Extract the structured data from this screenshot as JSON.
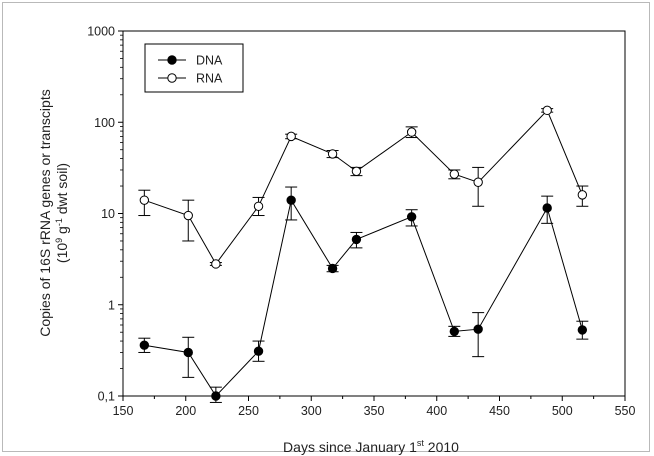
{
  "chart_data": {
    "type": "line",
    "x_axis": {
      "label_prefix": "Days since January 1",
      "label_sup": "st",
      "label_suffix": " 2010",
      "range": [
        150,
        550
      ],
      "ticks": [
        150,
        200,
        250,
        300,
        350,
        400,
        450,
        500,
        550
      ]
    },
    "y_axis": {
      "label_line1": "Copies of 16S rRNA genes or transcipts",
      "label_line2_prefix": "(10",
      "label_line2_sup1": "9",
      "label_line2_mid": " g",
      "label_line2_sup2": "-1",
      "label_line2_suffix": " dwt soil)",
      "scale": "log",
      "range": [
        0.1,
        1000
      ],
      "ticks": [
        0.1,
        1,
        10,
        100,
        1000
      ],
      "tick_labels": [
        "0,1",
        "1",
        "10",
        "100",
        "1000"
      ]
    },
    "grid": false,
    "legend": {
      "position": "top-left"
    },
    "series": [
      {
        "name": "DNA",
        "marker": "filled-circle",
        "color": "#000000",
        "points": [
          {
            "x": 167,
            "y": 0.36,
            "lo": 0.3,
            "hi": 0.43
          },
          {
            "x": 202,
            "y": 0.3,
            "lo": 0.16,
            "hi": 0.44
          },
          {
            "x": 224,
            "y": 0.1,
            "lo": 0.085,
            "hi": 0.125
          },
          {
            "x": 258,
            "y": 0.31,
            "lo": 0.24,
            "hi": 0.4
          },
          {
            "x": 284,
            "y": 14,
            "lo": 8.5,
            "hi": 19.5
          },
          {
            "x": 317,
            "y": 2.5,
            "lo": 2.3,
            "hi": 2.7
          },
          {
            "x": 336,
            "y": 5.2,
            "lo": 4.2,
            "hi": 6.2
          },
          {
            "x": 380,
            "y": 9.2,
            "lo": 7.3,
            "hi": 11
          },
          {
            "x": 414,
            "y": 0.51,
            "lo": 0.45,
            "hi": 0.58
          },
          {
            "x": 433,
            "y": 0.54,
            "lo": 0.27,
            "hi": 0.82
          },
          {
            "x": 488,
            "y": 11.5,
            "lo": 7.8,
            "hi": 15.5
          },
          {
            "x": 516,
            "y": 0.53,
            "lo": 0.42,
            "hi": 0.66
          }
        ]
      },
      {
        "name": "RNA",
        "marker": "open-circle",
        "color": "#000000",
        "points": [
          {
            "x": 167,
            "y": 14,
            "lo": 9.5,
            "hi": 18
          },
          {
            "x": 202,
            "y": 9.5,
            "lo": 5,
            "hi": 14
          },
          {
            "x": 224,
            "y": 2.8,
            "lo": 2.7,
            "hi": 2.9
          },
          {
            "x": 258,
            "y": 12,
            "lo": 9.5,
            "hi": 15
          },
          {
            "x": 284,
            "y": 70,
            "lo": 66,
            "hi": 74
          },
          {
            "x": 317,
            "y": 45,
            "lo": 41,
            "hi": 49
          },
          {
            "x": 336,
            "y": 29,
            "lo": 26,
            "hi": 32
          },
          {
            "x": 380,
            "y": 78,
            "lo": 68,
            "hi": 89
          },
          {
            "x": 414,
            "y": 27,
            "lo": 24,
            "hi": 30
          },
          {
            "x": 433,
            "y": 22,
            "lo": 12,
            "hi": 32
          },
          {
            "x": 488,
            "y": 135,
            "lo": 129,
            "hi": 141
          },
          {
            "x": 516,
            "y": 16,
            "lo": 12,
            "hi": 20
          }
        ]
      }
    ]
  }
}
